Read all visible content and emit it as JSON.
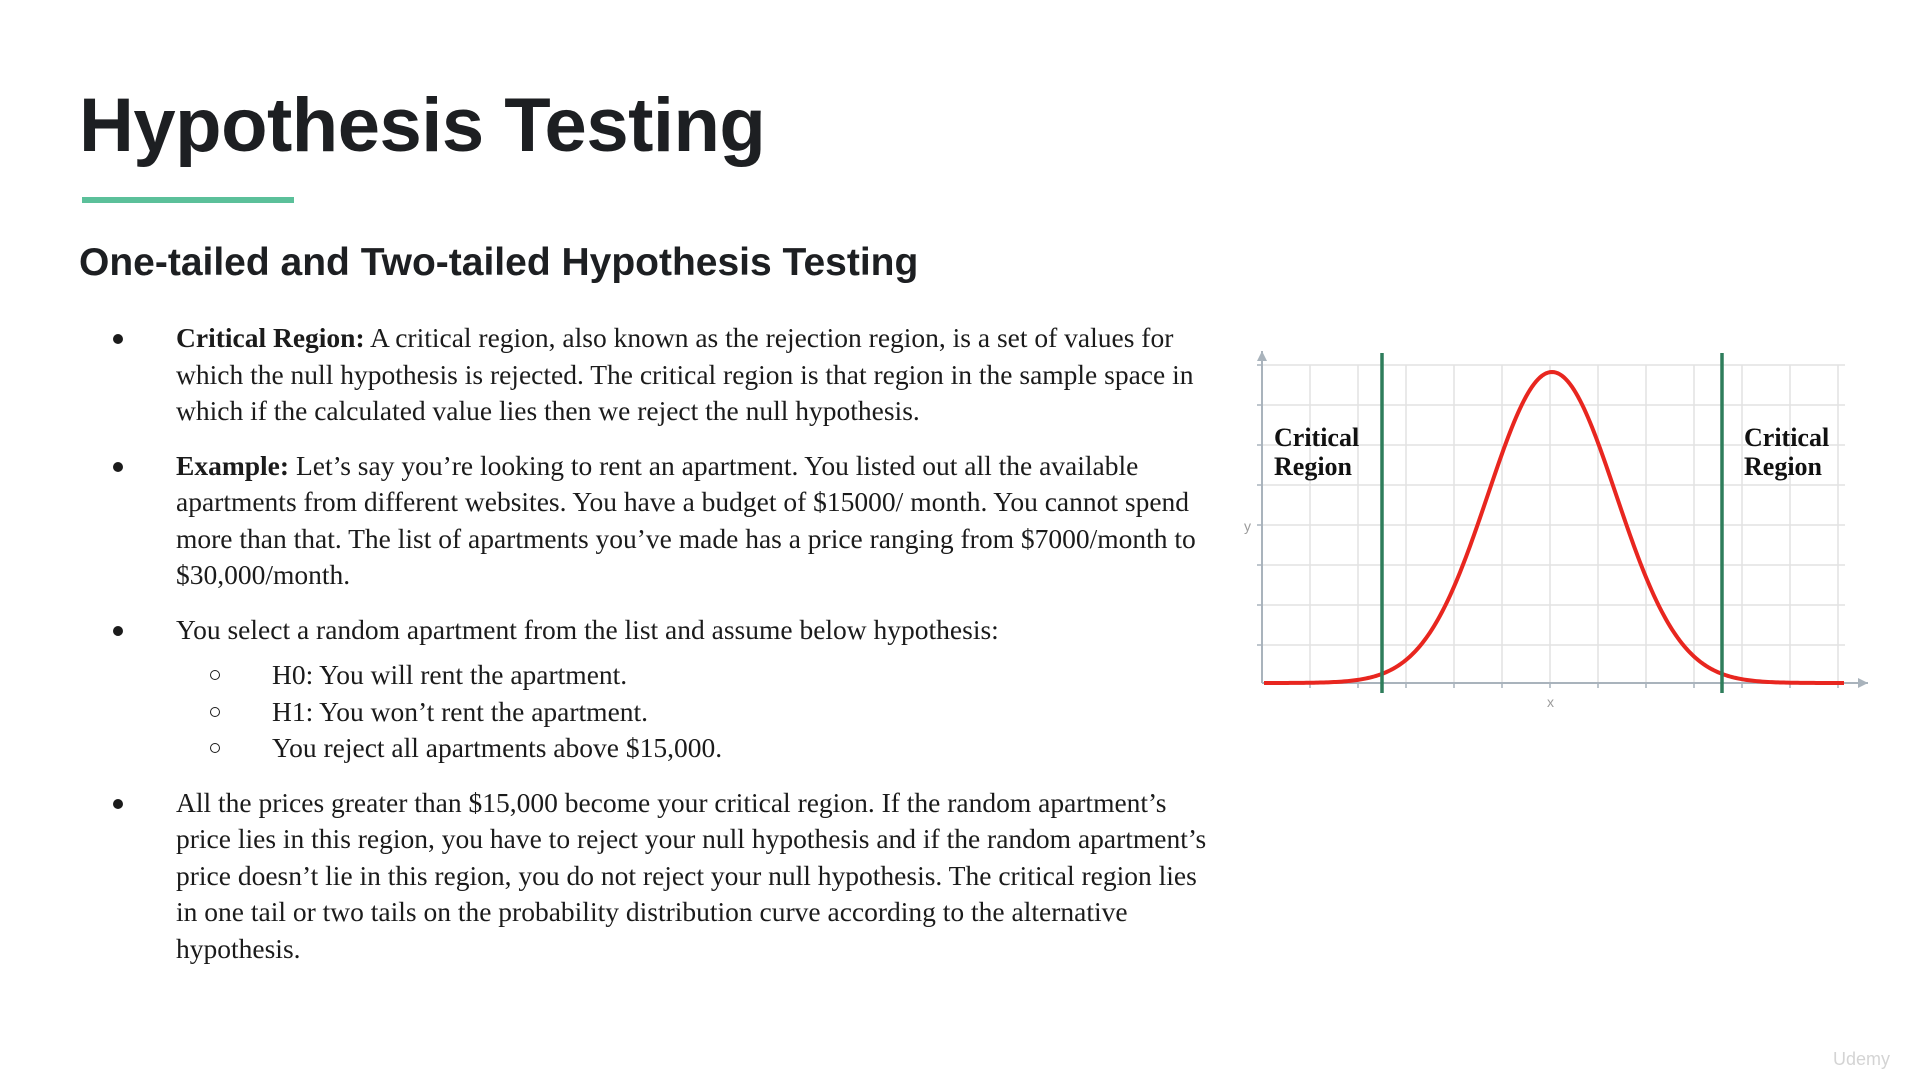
{
  "slide": {
    "title": "Hypothesis Testing",
    "subtitle": "One-tailed and Two-tailed Hypothesis Testing",
    "accent_color": "#5bc09a"
  },
  "bullets": {
    "critical_region": {
      "term": "Critical Region:",
      "text": " A critical region, also known as the rejection region, is a set of values for which the null hypothesis is rejected. The critical region is that region in the sample space in which if the calculated value lies then we reject the null hypothesis."
    },
    "example": {
      "term": "Example:",
      "text": " Let’s say you’re looking to rent an apartment. You listed out all the available apartments from different websites. You have a budget of  $15000/ month. You cannot spend more than that. The list of apartments you’ve made has a price ranging from $7000/month to $30,000/month."
    },
    "select": {
      "text": "You select a random apartment from the list and assume below hypothesis:"
    },
    "sub": [
      "H0: You will rent the apartment.",
      "H1: You won’t rent the apartment.",
      "You reject all apartments above $15,000."
    ],
    "conclusion": {
      "text": "All the prices greater than $15,000 become your critical region. If the random apartment’s price lies in this region, you have to reject your null hypothesis and if the random apartment’s price doesn’t lie in this region, you do not reject your null hypothesis. The critical region lies in one tail or two tails on the probability distribution curve according to the alternative hypothesis."
    }
  },
  "figure": {
    "left_label_line1": "Critical",
    "left_label_line2": "Region",
    "right_label_line1": "Critical",
    "right_label_line2": "Region",
    "y_axis_letter": "y",
    "x_axis_letter": "x",
    "curve_color": "#e8261f",
    "boundary_color": "#2e7d5b",
    "grid_color": "#e2e2e2",
    "axis_color": "#a9b3bc"
  },
  "watermark": {
    "text": "Udemy"
  }
}
